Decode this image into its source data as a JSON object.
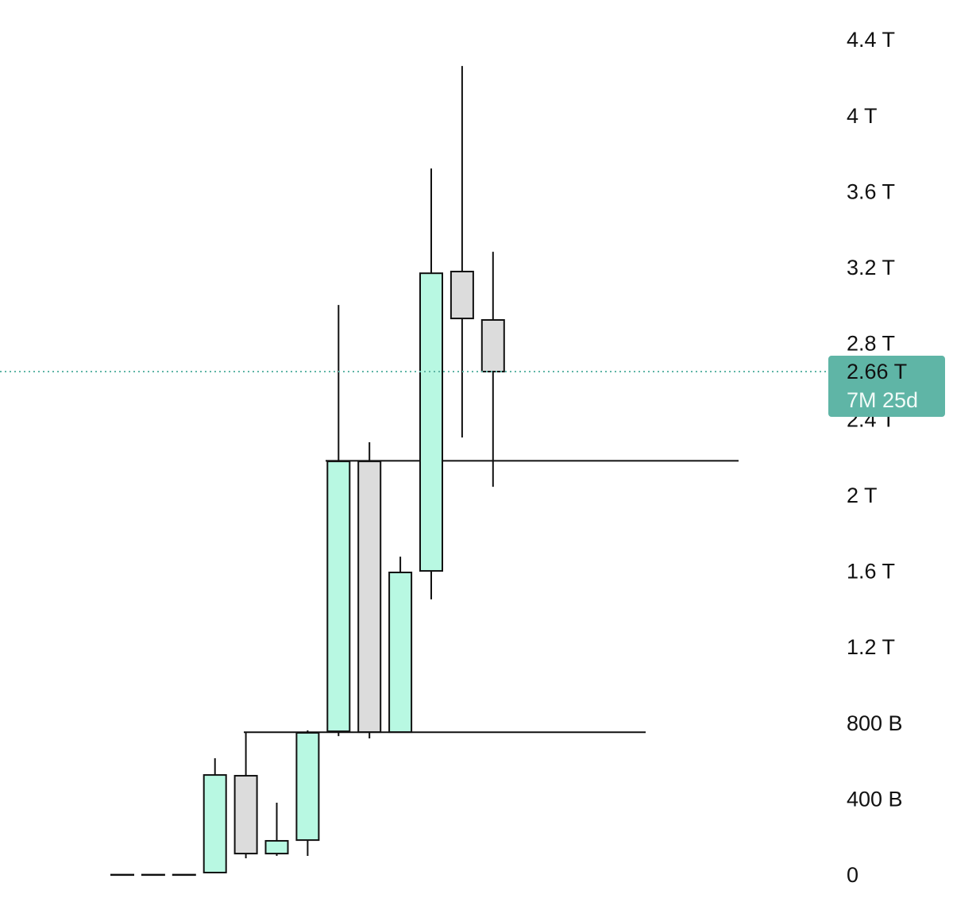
{
  "chart_data": {
    "type": "candlestick",
    "open": [
      10,
      10,
      10,
      21,
      531,
      121,
      192,
      765,
      2187,
      761,
      1610,
      3187,
      2932
    ],
    "high": [
      10,
      10,
      10,
      623,
      761,
      389,
      770,
      3011,
      2288,
      1685,
      3730,
      4270,
      3291
    ],
    "low": [
      10,
      10,
      10,
      21,
      96,
      109,
      109,
      740,
      728,
      761,
      1460,
      2313,
      2053
    ],
    "close": [
      10,
      10,
      10,
      535,
      121,
      188,
      757,
      2187,
      761,
      1602,
      3178,
      2940,
      2660
    ],
    "up_color": "#b8f8e2",
    "down_color": "#dcdcdc",
    "ylim": [
      0,
      4400
    ],
    "yticks": [
      {
        "value": 0,
        "label": "0"
      },
      {
        "value": 400,
        "label": "400 B"
      },
      {
        "value": 800,
        "label": "800 B"
      },
      {
        "value": 1200,
        "label": "1.2 T"
      },
      {
        "value": 1600,
        "label": "1.6 T"
      },
      {
        "value": 2000,
        "label": "2 T"
      },
      {
        "value": 2400,
        "label": "2.4 T"
      },
      {
        "value": 2800,
        "label": "2.8 T"
      },
      {
        "value": 3200,
        "label": "3.2 T"
      },
      {
        "value": 3600,
        "label": "3.6 T"
      },
      {
        "value": 4000,
        "label": "4 T"
      },
      {
        "value": 4400,
        "label": "4.4 T"
      }
    ],
    "levels": [
      2190,
      760
    ],
    "last_price": {
      "value": 2660,
      "label": "2.66 T"
    },
    "countdown": "7M 25d",
    "price_line_color": "#5fb5a6"
  }
}
